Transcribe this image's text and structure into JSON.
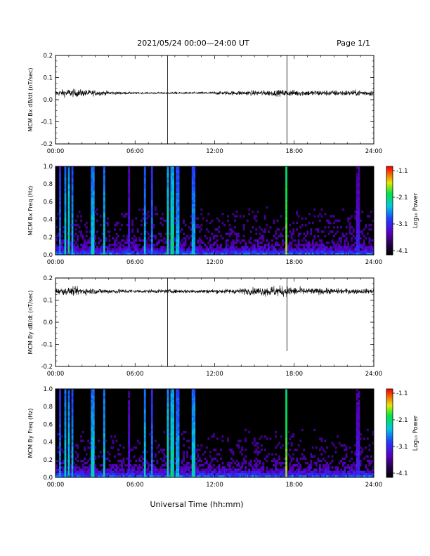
{
  "header": {
    "title": "2021/05/24  00:00—24:00 UT",
    "page": "Page 1/1"
  },
  "footer": {
    "xlabel": "Universal Time (hh:mm)"
  },
  "time_ticks": [
    "00:00",
    "06:00",
    "12:00",
    "18:00",
    "24:00"
  ],
  "colorbar": {
    "label": "Log₁₀ Power",
    "ticks": [
      "-1.1",
      "-2.1",
      "-3.1",
      "-4.1"
    ],
    "range": [
      -4.1,
      -1.1
    ]
  },
  "chart_data": [
    {
      "type": "line",
      "ylabel": "MCM Bx dB/dt (nT/sec)",
      "xlim": [
        0,
        24
      ],
      "ylim": [
        -0.2,
        0.2
      ],
      "yticks": [
        "0.2",
        "0.1",
        "0.0",
        "-0.1",
        "-0.2"
      ],
      "baseline": 0.03,
      "noise_profile": [
        [
          0,
          0.01
        ],
        [
          0.9,
          0.018
        ],
        [
          2.5,
          0.014
        ],
        [
          4.5,
          0.007
        ],
        [
          6.5,
          0.003
        ],
        [
          8.0,
          0.004
        ],
        [
          11.0,
          0.005
        ],
        [
          14.0,
          0.01
        ],
        [
          17.5,
          0.014
        ],
        [
          20.0,
          0.012
        ],
        [
          24.0,
          0.013
        ]
      ],
      "spikes": [
        {
          "t": 8.45,
          "lo": -0.2,
          "hi": 0.2
        },
        {
          "t": 17.45,
          "lo": -0.2,
          "hi": 0.2
        }
      ]
    },
    {
      "type": "heatmap",
      "ylabel": "MCM Bx Freq (Hz)",
      "xlim": [
        0,
        24
      ],
      "ylim": [
        0,
        1.0
      ],
      "yticks": [
        "1.0",
        "0.8",
        "0.6",
        "0.4",
        "0.2",
        "0.0"
      ],
      "colorbar_range": [
        -4.1,
        -1.1
      ],
      "streaks": [
        {
          "t": 0.3,
          "v": 0.45
        },
        {
          "t": 0.7,
          "v": 0.55
        },
        {
          "t": 1.0,
          "v": 0.6
        },
        {
          "t": 1.3,
          "v": 0.5
        },
        {
          "t": 2.8,
          "v": 0.55
        },
        {
          "t": 3.7,
          "v": 0.55
        },
        {
          "t": 5.5,
          "v": 0.3
        },
        {
          "t": 6.7,
          "v": 0.5
        },
        {
          "t": 7.3,
          "v": 0.45
        },
        {
          "t": 8.5,
          "v": 0.6
        },
        {
          "t": 8.8,
          "v": 0.6
        },
        {
          "t": 9.2,
          "v": 0.5
        },
        {
          "t": 10.4,
          "v": 0.5
        },
        {
          "t": 17.4,
          "v": 0.75
        },
        {
          "t": 22.8,
          "v": 0.3
        }
      ]
    },
    {
      "type": "line",
      "ylabel": "MCM By dB/dt (nT/sec)",
      "xlim": [
        0,
        24
      ],
      "ylim": [
        -0.2,
        0.2
      ],
      "yticks": [
        "0.2",
        "0.1",
        "0.0",
        "-0.1",
        "-0.2"
      ],
      "baseline": 0.14,
      "noise_profile": [
        [
          0,
          0.012
        ],
        [
          1.5,
          0.018
        ],
        [
          3.0,
          0.012
        ],
        [
          6.0,
          0.008
        ],
        [
          9.0,
          0.008
        ],
        [
          13.0,
          0.01
        ],
        [
          15.0,
          0.016
        ],
        [
          16.5,
          0.024
        ],
        [
          17.5,
          0.022
        ],
        [
          19.0,
          0.014
        ],
        [
          24.0,
          0.01
        ]
      ],
      "spikes": [
        {
          "t": 8.45,
          "lo": -0.2,
          "hi": 0.2
        },
        {
          "t": 17.45,
          "lo": -0.13,
          "hi": 0.2
        }
      ]
    },
    {
      "type": "heatmap",
      "ylabel": "MCM By Freq (Hz)",
      "xlim": [
        0,
        24
      ],
      "ylim": [
        0,
        1.0
      ],
      "yticks": [
        "1.0",
        "0.8",
        "0.6",
        "0.4",
        "0.2",
        "0.0"
      ],
      "colorbar_range": [
        -4.1,
        -1.1
      ],
      "streaks": [
        {
          "t": 0.3,
          "v": 0.45
        },
        {
          "t": 0.7,
          "v": 0.55
        },
        {
          "t": 1.0,
          "v": 0.55
        },
        {
          "t": 1.3,
          "v": 0.5
        },
        {
          "t": 2.8,
          "v": 0.55
        },
        {
          "t": 3.7,
          "v": 0.55
        },
        {
          "t": 5.5,
          "v": 0.3
        },
        {
          "t": 6.7,
          "v": 0.55
        },
        {
          "t": 7.3,
          "v": 0.45
        },
        {
          "t": 8.5,
          "v": 0.6
        },
        {
          "t": 8.8,
          "v": 0.6
        },
        {
          "t": 9.2,
          "v": 0.5
        },
        {
          "t": 10.4,
          "v": 0.55
        },
        {
          "t": 17.4,
          "v": 0.75
        },
        {
          "t": 22.8,
          "v": 0.3
        }
      ]
    }
  ]
}
